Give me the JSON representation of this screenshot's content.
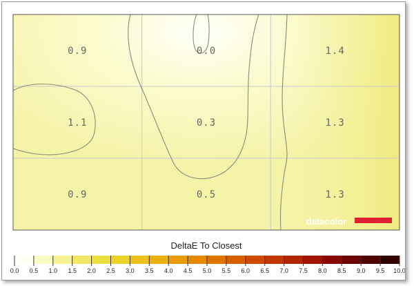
{
  "chart_data": {
    "type": "heatmap",
    "rows": 3,
    "cols": 3,
    "values": [
      [
        0.9,
        0.0,
        1.4
      ],
      [
        1.1,
        0.3,
        1.3
      ],
      [
        0.9,
        0.5,
        1.3
      ]
    ],
    "labels": [
      [
        "0.9",
        "0.0",
        "1.4"
      ],
      [
        "1.1",
        "0.3",
        "1.3"
      ],
      [
        "0.9",
        "0.5",
        "1.3"
      ]
    ],
    "grid": true,
    "contours": true,
    "colorbar": {
      "title": "DeltaE To Closest",
      "range": [
        0.0,
        10.0
      ],
      "step": 0.5,
      "tick_labels": [
        "0.0",
        "0.5",
        "1.0",
        "1.5",
        "2.0",
        "2.5",
        "3.0",
        "3.5",
        "4.0",
        "4.5",
        "5.0",
        "5.5",
        "6.0",
        "6.5",
        "7.0",
        "7.5",
        "8.0",
        "8.5",
        "9.0",
        "9.5",
        "10.0"
      ],
      "colors": [
        "#fffff4",
        "#fbfbc4",
        "#f6f393",
        "#f1e966",
        "#ede041",
        "#ecd32a",
        "#ebc318",
        "#eab00d",
        "#e89c06",
        "#e48802",
        "#df7300",
        "#d85f00",
        "#cf4a00",
        "#c43600",
        "#b52400",
        "#a21400",
        "#880a00",
        "#6c0600",
        "#4f0400",
        "#330300"
      ]
    }
  },
  "brand": {
    "name": "datacolor",
    "bar_color": "#e02030"
  }
}
